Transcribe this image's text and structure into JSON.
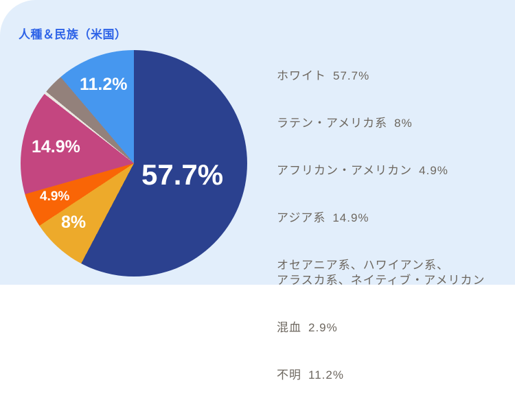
{
  "title": "人種＆民族（米国）",
  "colors": {
    "page_background": "#ffffff",
    "card_background": "#e2eefb",
    "title_text": "#2e63e7",
    "legend_text": "#6d675f",
    "pie_label_text": "#ffffff"
  },
  "chart_data": {
    "type": "pie",
    "title": "人種＆民族（米国）",
    "start_angle_deg": 0,
    "direction": "clockwise",
    "legend_position": "right",
    "slices": [
      {
        "label": "ホワイト",
        "value": 57.7,
        "pct_label": "57.7%",
        "color": "#2b418f"
      },
      {
        "label": "ラテン・アメリカ系",
        "value": 8,
        "pct_label": "8%",
        "color": "#edaa2b"
      },
      {
        "label": "アフリカン・アメリカン",
        "value": 4.9,
        "pct_label": "4.9%",
        "color": "#f96506"
      },
      {
        "label": "アジア系",
        "value": 14.9,
        "pct_label": "14.9%",
        "color": "#c44680"
      },
      {
        "label": "オセアニア系、ハワイアン系、\nアラスカ系、ネイティブ・アメリカン",
        "value": 0.4,
        "pct_label": "",
        "color": "#ebe8e2"
      },
      {
        "label": "混血",
        "value": 2.9,
        "pct_label": "2.9%",
        "color": "#93817b"
      },
      {
        "label": "不明",
        "value": 11.2,
        "pct_label": "11.2%",
        "color": "#4697ef"
      }
    ]
  }
}
